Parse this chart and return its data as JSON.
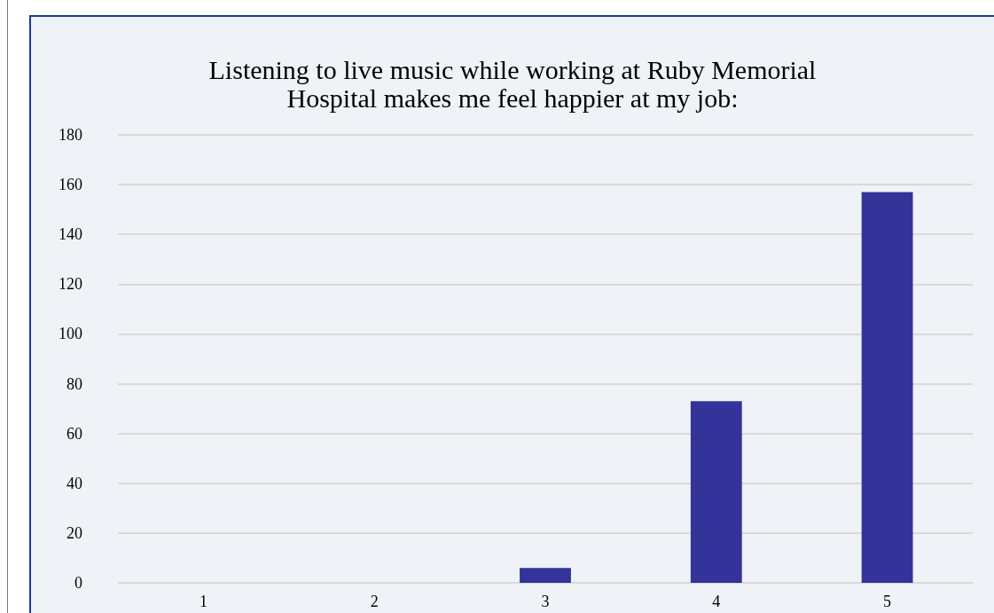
{
  "chart_data": {
    "type": "bar",
    "title": "Listening to live music while working at Ruby Memorial\nHospital makes me feel happier at my job:",
    "categories": [
      "1",
      "2",
      "3",
      "4",
      "5"
    ],
    "values": [
      0,
      0,
      6,
      73,
      157
    ],
    "color": "#333399",
    "ylim": [
      0,
      180
    ],
    "yticks": [
      0,
      20,
      40,
      60,
      80,
      100,
      120,
      140,
      160,
      180
    ],
    "grid": "y"
  }
}
